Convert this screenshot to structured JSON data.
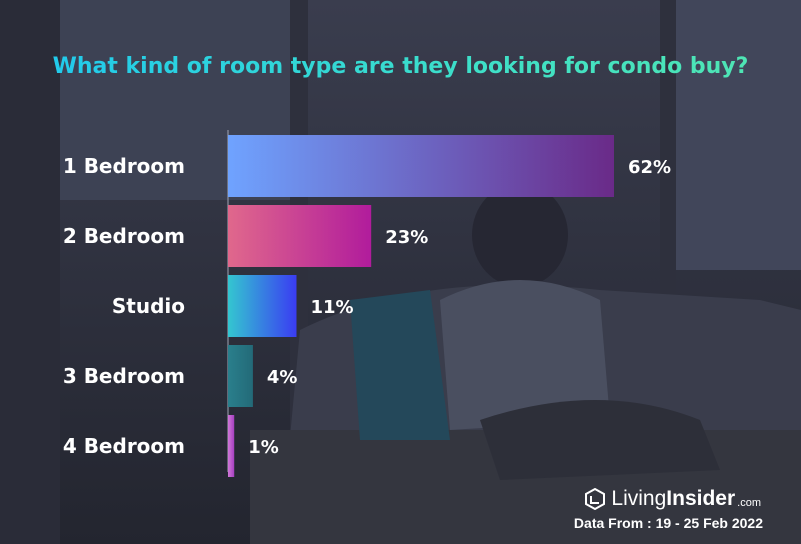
{
  "header": {
    "title": "What kind of room type are they looking for condo buy?"
  },
  "chart_data": {
    "type": "bar",
    "orientation": "horizontal",
    "title": "What kind of room type are they looking for condo buy?",
    "categories": [
      "1 Bedroom",
      "2 Bedroom",
      "Studio",
      "3 Bedroom",
      "4 Bedroom"
    ],
    "values": [
      62,
      23,
      11,
      4,
      1
    ],
    "value_labels": [
      "62%",
      "23%",
      "11%",
      "4%",
      "1%"
    ],
    "xlim": [
      0,
      62
    ],
    "grid": false,
    "colors": [
      [
        "#6fa3ff",
        "#6a2a88"
      ],
      [
        "#e0688c",
        "#b11c9c"
      ],
      [
        "#34c6d0",
        "#3a3cf2"
      ],
      [
        "#2a7f8c",
        "#236a78"
      ],
      [
        "#d078d8",
        "#a53ec0"
      ]
    ]
  },
  "footer": {
    "brand_living": "Living",
    "brand_insider": "Insider",
    "brand_com": ".com",
    "data_source": "Data From : 19 - 25 Feb 2022"
  }
}
